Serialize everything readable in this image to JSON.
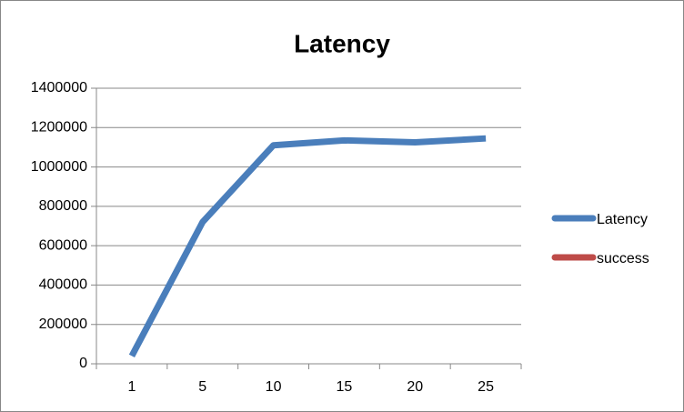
{
  "chart_data": {
    "type": "line",
    "title": "Latency",
    "categories": [
      1,
      5,
      10,
      15,
      20,
      25
    ],
    "series": [
      {
        "name": "Latency",
        "color": "#4a7ebb",
        "values": [
          40000,
          720000,
          1110000,
          1135000,
          1125000,
          1145000
        ]
      },
      {
        "name": "success",
        "color": "#be4b48",
        "values": [
          null,
          null,
          null,
          null,
          null,
          null
        ]
      }
    ],
    "ylim": [
      0,
      1400000
    ],
    "yticks": [
      0,
      200000,
      400000,
      600000,
      800000,
      1000000,
      1200000,
      1400000
    ],
    "grid": true,
    "legend": "right"
  }
}
